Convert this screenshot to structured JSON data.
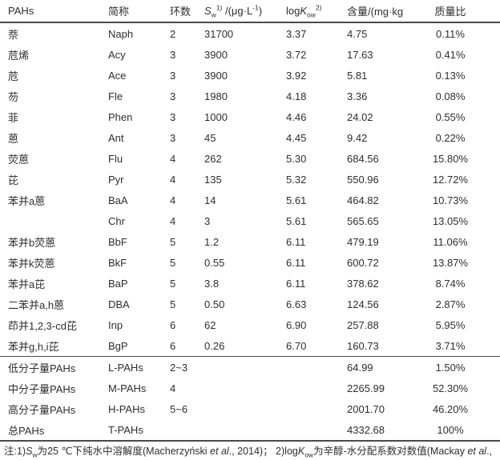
{
  "colors": {
    "text": "#2e2e2e",
    "line": "#4a4a4a",
    "background": "#ffffff"
  },
  "table": {
    "columns_html": [
      "PAHs",
      "简称",
      "环数",
      "<i>S</i><sub>w</sub><sup>1)</sup> /(μg·L<sup>-1</sup>)",
      "log<i>K</i><sub>ow</sub><sup>2)</sup>",
      "含量/(mg·kg<sup>-1</sup>)",
      "质量比"
    ],
    "pah_rows": [
      {
        "name": "萘",
        "abbr": "Naph",
        "rings": "2",
        "sw": "31700",
        "logkow": "3.37",
        "content": "4.75",
        "fraction": "0.11%"
      },
      {
        "name": "苊烯",
        "abbr": "Acy",
        "rings": "3",
        "sw": "3900",
        "logkow": "3.72",
        "content": "17.63",
        "fraction": "0.41%"
      },
      {
        "name": "苊",
        "abbr": "Ace",
        "rings": "3",
        "sw": "3900",
        "logkow": "3.92",
        "content": "5.81",
        "fraction": "0.13%"
      },
      {
        "name": "芴",
        "abbr": "Fle",
        "rings": "3",
        "sw": "1980",
        "logkow": "4.18",
        "content": "3.36",
        "fraction": "0.08%"
      },
      {
        "name": "菲",
        "abbr": "Phen",
        "rings": "3",
        "sw": "1000",
        "logkow": "4.46",
        "content": "24.02",
        "fraction": "0.55%"
      },
      {
        "name": "蒽",
        "abbr": "Ant",
        "rings": "3",
        "sw": "45",
        "logkow": "4.45",
        "content": "9.42",
        "fraction": "0.22%"
      },
      {
        "name": "荧蒽",
        "abbr": "Flu",
        "rings": "4",
        "sw": "262",
        "logkow": "5.30",
        "content": "684.56",
        "fraction": "15.80%"
      },
      {
        "name": "芘",
        "abbr": "Pyr",
        "rings": "4",
        "sw": "135",
        "logkow": "5.32",
        "content": "550.96",
        "fraction": "12.72%"
      },
      {
        "name": "苯并a蒽",
        "abbr": "BaA",
        "rings": "4",
        "sw": "14",
        "logkow": "5.61",
        "content": "464.82",
        "fraction": "10.73%"
      },
      {
        "name": "",
        "abbr": "Chr",
        "rings": "4",
        "sw": "3",
        "logkow": "5.61",
        "content": "565.65",
        "fraction": "13.05%"
      },
      {
        "name": "苯并b荧蒽",
        "abbr": "BbF",
        "rings": "5",
        "sw": "1.2",
        "logkow": "6.11",
        "content": "479.19",
        "fraction": "11.06%"
      },
      {
        "name": "苯并k荧蒽",
        "abbr": "BkF",
        "rings": "5",
        "sw": "0.55",
        "logkow": "6.11",
        "content": "600.72",
        "fraction": "13.87%"
      },
      {
        "name": "苯并a芘",
        "abbr": "BaP",
        "rings": "5",
        "sw": "3.8",
        "logkow": "6.11",
        "content": "378.62",
        "fraction": "8.74%"
      },
      {
        "name": "二苯并a,h蒽",
        "abbr": "DBA",
        "rings": "5",
        "sw": "0.50",
        "logkow": "6.63",
        "content": "124.56",
        "fraction": "2.87%"
      },
      {
        "name": "茚并1,2,3-cd芘",
        "abbr": "Inp",
        "rings": "6",
        "sw": "62",
        "logkow": "6.90",
        "content": "257.88",
        "fraction": "5.95%"
      },
      {
        "name": "苯并g,h,i芘",
        "abbr": "BgP",
        "rings": "6",
        "sw": "0.26",
        "logkow": "6.70",
        "content": "160.73",
        "fraction": "3.71%"
      }
    ],
    "summary_rows": [
      {
        "name": "低分子量PAHs",
        "abbr": "L-PAHs",
        "rings": "2~3",
        "sw": "",
        "logkow": "",
        "content": "64.99",
        "fraction": "1.50%"
      },
      {
        "name": "中分子量PAHs",
        "abbr": "M-PAHs",
        "rings": "4",
        "sw": "",
        "logkow": "",
        "content": "2265.99",
        "fraction": "52.30%"
      },
      {
        "name": "高分子量PAHs",
        "abbr": "H-PAHs",
        "rings": "5~6",
        "sw": "",
        "logkow": "",
        "content": "2001.70",
        "fraction": "46.20%"
      },
      {
        "name": "总PAHs",
        "abbr": "T-PAHs",
        "rings": "",
        "sw": "",
        "logkow": "",
        "content": "4332.68",
        "fraction": "100%"
      }
    ]
  },
  "note_html": "注:1)<i>S</i><sub>w</sub>为25 ℃下纯水中溶解度(Macherzyński <i>et al</i>., 2014)； 2)log<i>K</i><sub>ow</sub>为辛醇-水分配系数对数值(Mackay <i>et al</i>.,"
}
